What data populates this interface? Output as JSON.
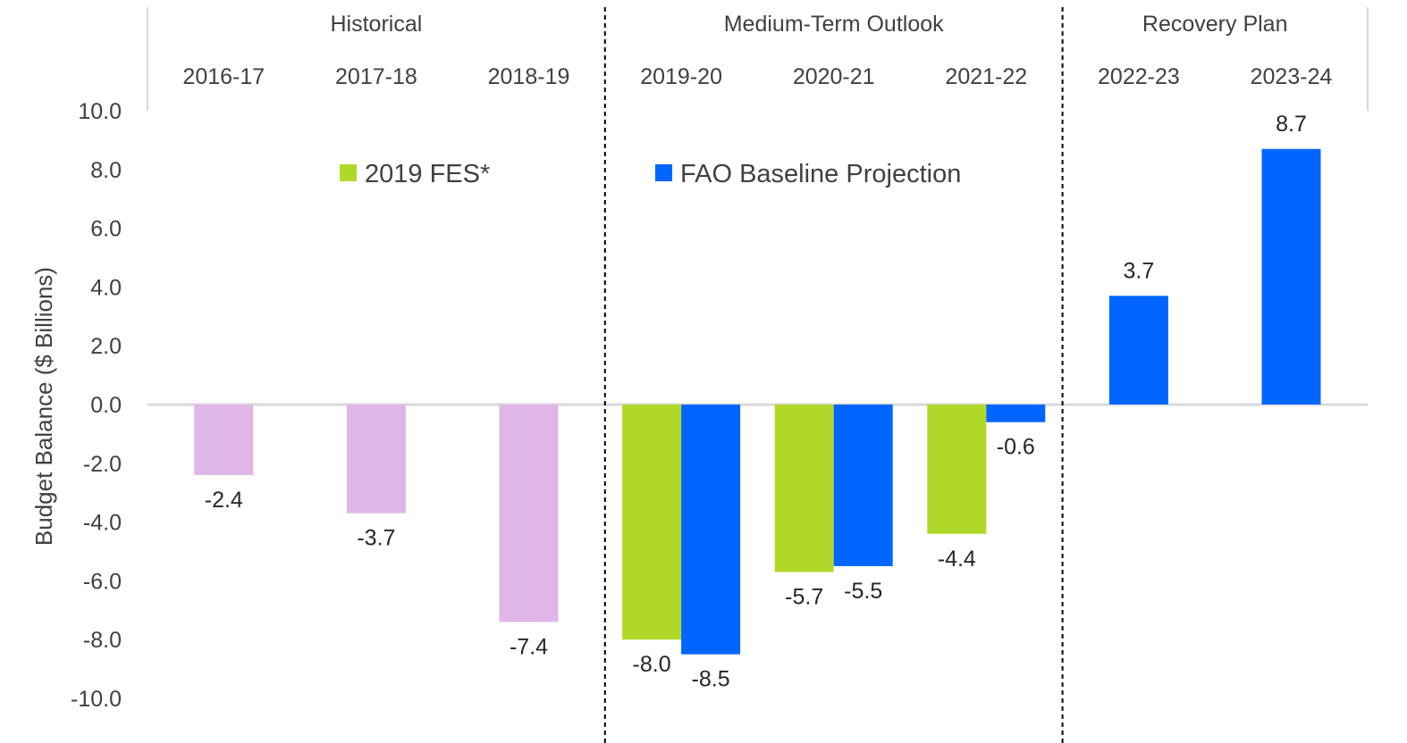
{
  "chart_data": {
    "type": "bar",
    "ylabel": "Budget Balance ($ Billions)",
    "ylim": [
      -10,
      10
    ],
    "ytick_step": 2,
    "ytick_labels": [
      "-10.0",
      "-8.0",
      "-6.0",
      "-4.0",
      "-2.0",
      "0.0",
      "2.0",
      "4.0",
      "6.0",
      "8.0",
      "10.0"
    ],
    "categories": [
      "2016-17",
      "2017-18",
      "2018-19",
      "2019-20",
      "2020-21",
      "2021-22",
      "2022-23",
      "2023-24"
    ],
    "groups": [
      {
        "label": "Historical",
        "categories": [
          "2016-17",
          "2017-18",
          "2018-19"
        ]
      },
      {
        "label": "Medium-Term Outlook",
        "categories": [
          "2019-20",
          "2020-21",
          "2021-22"
        ]
      },
      {
        "label": "Recovery Plan",
        "categories": [
          "2022-23",
          "2023-24"
        ]
      }
    ],
    "historical": {
      "values": [
        -2.4,
        -3.7,
        -7.4,
        null,
        null,
        null,
        null,
        null
      ],
      "labels": [
        "-2.4",
        "-3.7",
        "-7.4",
        "",
        "",
        "",
        "",
        ""
      ],
      "color": "#e0b6e8"
    },
    "series": [
      {
        "name": "2019 FES*",
        "color": "#b0d828",
        "values": [
          null,
          null,
          null,
          -8.0,
          -5.7,
          -4.4,
          null,
          null
        ],
        "labels": [
          "",
          "",
          "",
          "-8.0",
          "-5.7",
          "-4.4",
          "",
          ""
        ]
      },
      {
        "name": "FAO Baseline Projection",
        "color": "#0066ff",
        "values": [
          null,
          null,
          null,
          -8.5,
          -5.5,
          -0.6,
          3.7,
          8.7
        ],
        "labels": [
          "",
          "",
          "",
          "-8.5",
          "-5.5",
          "-0.6",
          "3.7",
          "8.7"
        ]
      }
    ],
    "legend_position": "top-center",
    "grid": false
  }
}
